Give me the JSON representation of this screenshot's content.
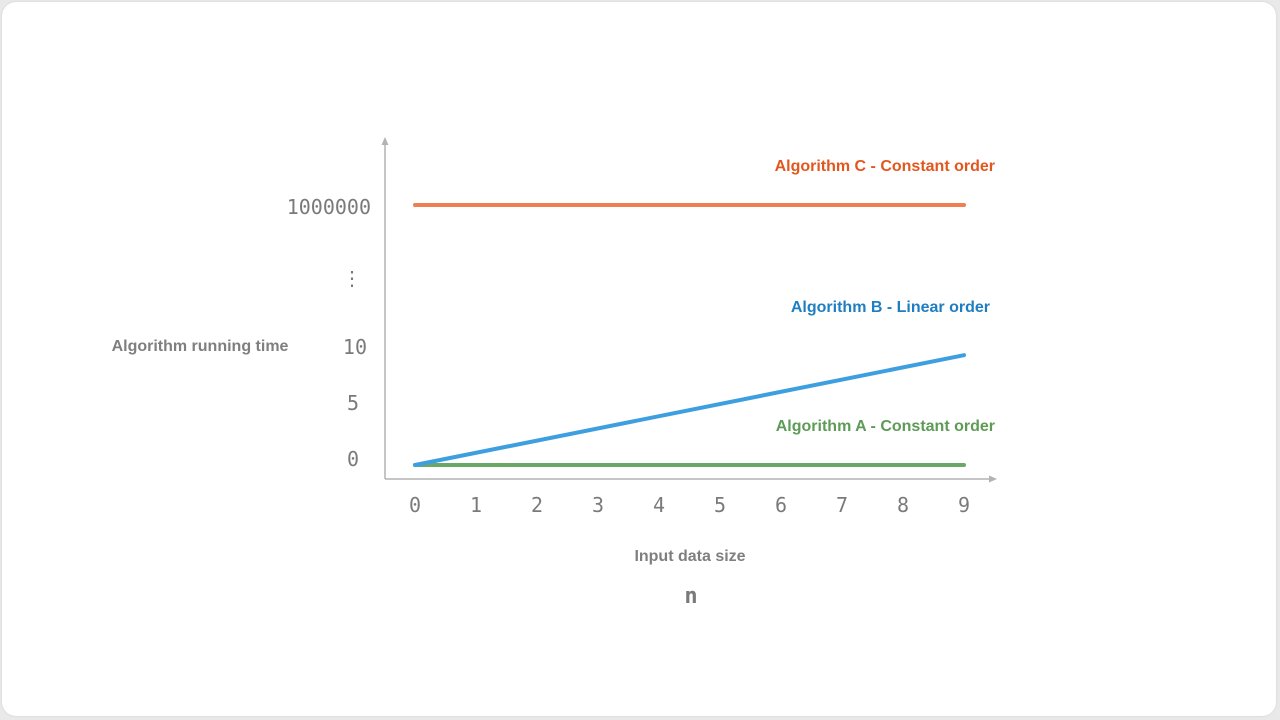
{
  "chart_data": {
    "type": "line",
    "ylabel": "Algorithm running time",
    "xlabel": "Input data size",
    "x_variable": "n",
    "x": [
      0,
      1,
      2,
      3,
      4,
      5,
      6,
      7,
      8,
      9
    ],
    "x_tick_labels": [
      "0",
      "1",
      "2",
      "3",
      "4",
      "5",
      "6",
      "7",
      "8",
      "9"
    ],
    "y_tick_labels": [
      "0",
      "5",
      "10",
      "1000000"
    ],
    "y_axis_break": "⋮",
    "series": [
      {
        "name": "Algorithm A - Constant order",
        "color": "#6aa867",
        "values": [
          0,
          0,
          0,
          0,
          0,
          0,
          0,
          0,
          0,
          0
        ]
      },
      {
        "name": "Algorithm B - Linear order",
        "color": "#3e9fe0",
        "values": [
          0,
          1,
          2,
          3,
          4,
          5,
          6,
          7,
          8,
          9
        ]
      },
      {
        "name": "Algorithm C - Constant order",
        "color": "#ef7f52",
        "values": [
          1000000,
          1000000,
          1000000,
          1000000,
          1000000,
          1000000,
          1000000,
          1000000,
          1000000,
          1000000
        ]
      }
    ],
    "label_colors": {
      "a": "#5d9b56",
      "b": "#1f7ec2",
      "c": "#e2571e"
    },
    "grid": false,
    "legend": "inline-labels"
  }
}
